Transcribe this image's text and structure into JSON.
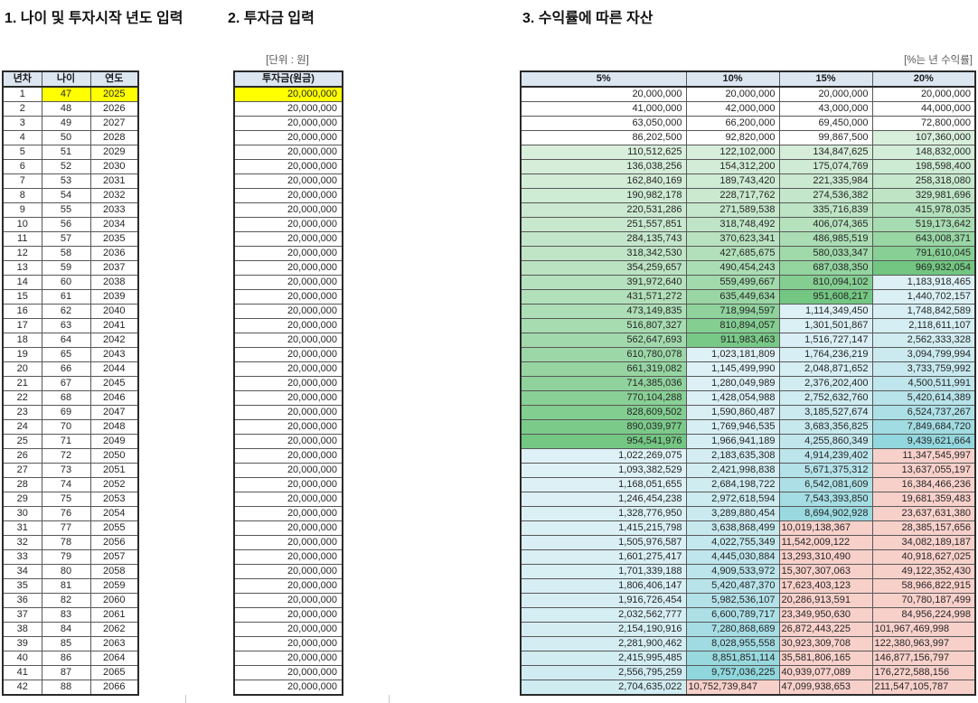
{
  "titles": {
    "section1": "1. 나이 및 투자시작 년도 입력",
    "section2": "2. 투자금 입력",
    "section3": "3. 수익률에 따른 자산"
  },
  "labels": {
    "unit_won": "[단위 : 원]",
    "unit_return": "[%는 년 수익률]"
  },
  "left_table": {
    "headers": [
      "년차",
      "나이",
      "연도"
    ],
    "rows": [
      [
        1,
        47,
        2025
      ],
      [
        2,
        48,
        2026
      ],
      [
        3,
        49,
        2027
      ],
      [
        4,
        50,
        2028
      ],
      [
        5,
        51,
        2029
      ],
      [
        6,
        52,
        2030
      ],
      [
        7,
        53,
        2031
      ],
      [
        8,
        54,
        2032
      ],
      [
        9,
        55,
        2033
      ],
      [
        10,
        56,
        2034
      ],
      [
        11,
        57,
        2035
      ],
      [
        12,
        58,
        2036
      ],
      [
        13,
        59,
        2037
      ],
      [
        14,
        60,
        2038
      ],
      [
        15,
        61,
        2039
      ],
      [
        16,
        62,
        2040
      ],
      [
        17,
        63,
        2041
      ],
      [
        18,
        64,
        2042
      ],
      [
        19,
        65,
        2043
      ],
      [
        20,
        66,
        2044
      ],
      [
        21,
        67,
        2045
      ],
      [
        22,
        68,
        2046
      ],
      [
        23,
        69,
        2047
      ],
      [
        24,
        70,
        2048
      ],
      [
        25,
        71,
        2049
      ],
      [
        26,
        72,
        2050
      ],
      [
        27,
        73,
        2051
      ],
      [
        28,
        74,
        2052
      ],
      [
        29,
        75,
        2053
      ],
      [
        30,
        76,
        2054
      ],
      [
        31,
        77,
        2055
      ],
      [
        32,
        78,
        2056
      ],
      [
        33,
        79,
        2057
      ],
      [
        34,
        80,
        2058
      ],
      [
        35,
        81,
        2059
      ],
      [
        36,
        82,
        2060
      ],
      [
        37,
        83,
        2061
      ],
      [
        38,
        84,
        2062
      ],
      [
        39,
        85,
        2063
      ],
      [
        40,
        86,
        2064
      ],
      [
        41,
        87,
        2065
      ],
      [
        42,
        88,
        2066
      ]
    ]
  },
  "investment_table": {
    "header": "투자금(원금)",
    "values": [
      20000000,
      20000000,
      20000000,
      20000000,
      20000000,
      20000000,
      20000000,
      20000000,
      20000000,
      20000000,
      20000000,
      20000000,
      20000000,
      20000000,
      20000000,
      20000000,
      20000000,
      20000000,
      20000000,
      20000000,
      20000000,
      20000000,
      20000000,
      20000000,
      20000000,
      20000000,
      20000000,
      20000000,
      20000000,
      20000000,
      20000000,
      20000000,
      20000000,
      20000000,
      20000000,
      20000000,
      20000000,
      20000000,
      20000000,
      20000000,
      20000000,
      20000000
    ]
  },
  "returns_table": {
    "headers": [
      "5%",
      "10%",
      "15%",
      "20%"
    ],
    "rows": [
      [
        20000000,
        20000000,
        20000000,
        20000000
      ],
      [
        41000000,
        42000000,
        43000000,
        44000000
      ],
      [
        63050000,
        66200000,
        69450000,
        72800000
      ],
      [
        86202500,
        92820000,
        99867500,
        107360000
      ],
      [
        110512625,
        122102000,
        134847625,
        148832000
      ],
      [
        136038256,
        154312200,
        175074769,
        198598400
      ],
      [
        162840169,
        189743420,
        221335984,
        258318080
      ],
      [
        190982178,
        228717762,
        274536382,
        329981696
      ],
      [
        220531286,
        271589538,
        335716839,
        415978035
      ],
      [
        251557851,
        318748492,
        406074365,
        519173642
      ],
      [
        284135743,
        370623341,
        486985519,
        643008371
      ],
      [
        318342530,
        427685675,
        580033347,
        791610045
      ],
      [
        354259657,
        490454243,
        687038350,
        969932054
      ],
      [
        391972640,
        559499667,
        810094102,
        1183918465
      ],
      [
        431571272,
        635449634,
        951608217,
        1440702157
      ],
      [
        473149835,
        718994597,
        1114349450,
        1748842589
      ],
      [
        516807327,
        810894057,
        1301501867,
        2118611107
      ],
      [
        562647693,
        911983463,
        1516727147,
        2562333328
      ],
      [
        610780078,
        1023181809,
        1764236219,
        3094799994
      ],
      [
        661319082,
        1145499990,
        2048871652,
        3733759992
      ],
      [
        714385036,
        1280049989,
        2376202400,
        4500511991
      ],
      [
        770104288,
        1428054988,
        2752632760,
        5420614389
      ],
      [
        828609502,
        1590860487,
        3185527674,
        6524737267
      ],
      [
        890039977,
        1769946535,
        3683356825,
        7849684720
      ],
      [
        954541976,
        1966941189,
        4255860349,
        9439621664
      ],
      [
        1022269075,
        2183635308,
        4914239402,
        11347545997
      ],
      [
        1093382529,
        2421998838,
        5671375312,
        13637055197
      ],
      [
        1168051655,
        2684198722,
        6542081609,
        16384466236
      ],
      [
        1246454238,
        2972618594,
        7543393850,
        19681359483
      ],
      [
        1328776950,
        3289880454,
        8694902928,
        23637631380
      ],
      [
        1415215798,
        3638868499,
        10019138367,
        28385157656
      ],
      [
        1505976587,
        4022755349,
        11542009122,
        34082189187
      ],
      [
        1601275417,
        4445030884,
        13293310490,
        40918627025
      ],
      [
        1701339188,
        4909533972,
        15307307063,
        49122352430
      ],
      [
        1806406147,
        5420487370,
        17623403123,
        58966822915
      ],
      [
        1916726454,
        5982536107,
        20286913591,
        70780187499
      ],
      [
        2032562777,
        6600789717,
        23349950630,
        84956224998
      ],
      [
        2154190916,
        7280868689,
        26872443225,
        101967469998
      ],
      [
        2281900462,
        8028955558,
        30923309708,
        122380963997
      ],
      [
        2415995485,
        8851851114,
        35581806165,
        146877156797
      ],
      [
        2556795259,
        9757036225,
        40939077089,
        176272588156
      ],
      [
        2704635022,
        10752739847,
        47099938653,
        211547105787
      ]
    ]
  },
  "colors": {
    "header_bg": "#dce6f1",
    "input_highlight": "#ffff00",
    "border_outer": "#2a2a2a",
    "border_inner": "#585858",
    "label_gray": "#595959",
    "scale": [
      {
        "min": 0,
        "max": 100000000,
        "type": "flat",
        "color": "#ffffff"
      },
      {
        "min": 100000000,
        "max": 1000000000,
        "type": "lerp",
        "from": "#d9efdd",
        "to": "#6ec57e"
      },
      {
        "min": 1000000000,
        "max": 10000000000,
        "type": "lerp",
        "from": "#def1f6",
        "to": "#8ed5dc"
      },
      {
        "min": 10000000000,
        "max": 1000000000000000,
        "type": "flat",
        "color": "#f8d0ca"
      }
    ]
  }
}
